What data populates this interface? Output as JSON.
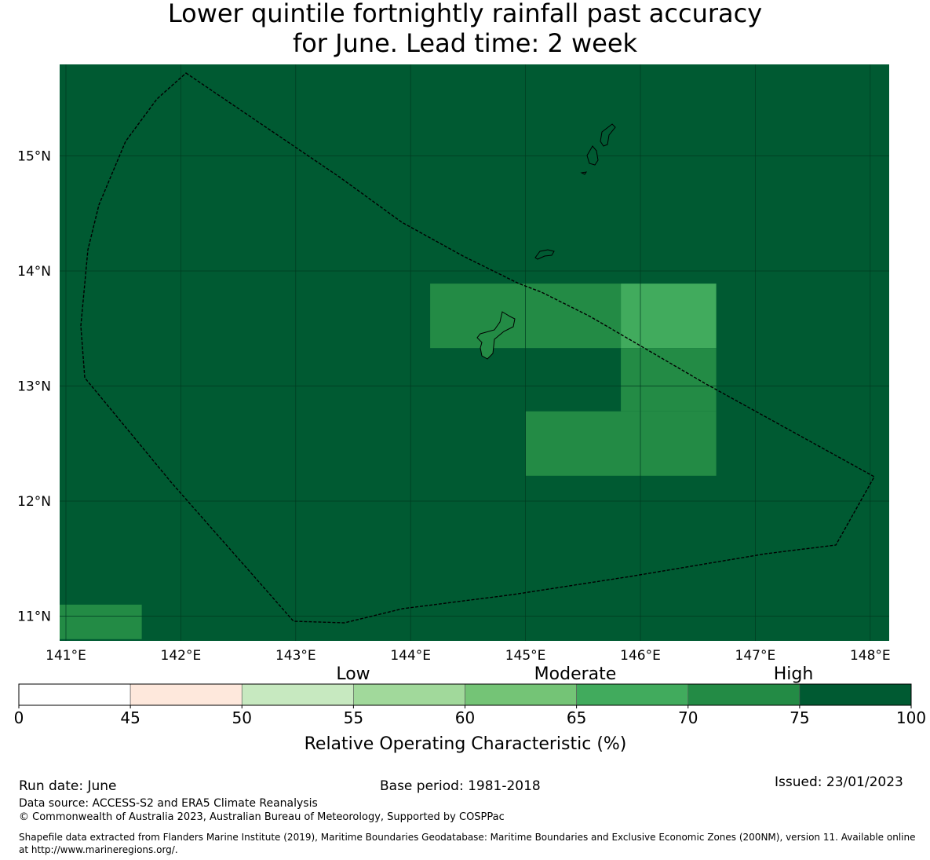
{
  "title": {
    "line1": "Lower quintile fortnightly rainfall past accuracy",
    "line2": "for June. Lead time: 2 week"
  },
  "map": {
    "background_color": "#005a32",
    "lat_labels": [
      "15°N",
      "14°N",
      "13°N",
      "12°N",
      "11°N"
    ],
    "lon_labels": [
      "141°E",
      "142°E",
      "143°E",
      "144°E",
      "145°E",
      "146°E",
      "147°E",
      "148°E"
    ],
    "cells": [
      {
        "lon": [
          144.17,
          145.83
        ],
        "lat": [
          13.33,
          13.89
        ],
        "color": "#238b45"
      },
      {
        "lon": [
          145.83,
          146.66
        ],
        "lat": [
          13.33,
          13.89
        ],
        "color": "#41ab5d"
      },
      {
        "lon": [
          145.83,
          146.66
        ],
        "lat": [
          12.78,
          13.33
        ],
        "color": "#238b45"
      },
      {
        "lon": [
          145.0,
          146.66
        ],
        "lat": [
          12.22,
          12.78
        ],
        "color": "#238b45"
      },
      {
        "lon": [
          140.93,
          141.66
        ],
        "lat": [
          10.8,
          11.1
        ],
        "color": "#238b45"
      }
    ]
  },
  "colorbar": {
    "ticks": [
      "0",
      "45",
      "50",
      "55",
      "60",
      "65",
      "70",
      "75",
      "100"
    ],
    "colors": [
      "#ffffff",
      "#fee8dc",
      "#c7e9c0",
      "#a1d99b",
      "#74c476",
      "#41ab5d",
      "#238b45",
      "#005a32"
    ],
    "categories": [
      "Low",
      "Moderate",
      "High"
    ],
    "label": "Relative Operating Characteristic (%)"
  },
  "footer": {
    "run_date": "Run date: June",
    "base_period": "Base period: 1981-2018",
    "issued": "Issued: 23/01/2023",
    "data_source": "Data source: ACCESS-S2 and ERA5 Climate Reanalysis",
    "copyright": "© Commonwealth of Australia 2023, Australian Bureau of Meteorology, Supported by COSPPac",
    "shapefile": "Shapefile data extracted from Flanders Marine Institute (2019), Maritime Boundaries Geodatabase: Maritime Boundaries and Exclusive Economic Zones (200NM), version 11. Available online at http://www.marineregions.org/."
  }
}
